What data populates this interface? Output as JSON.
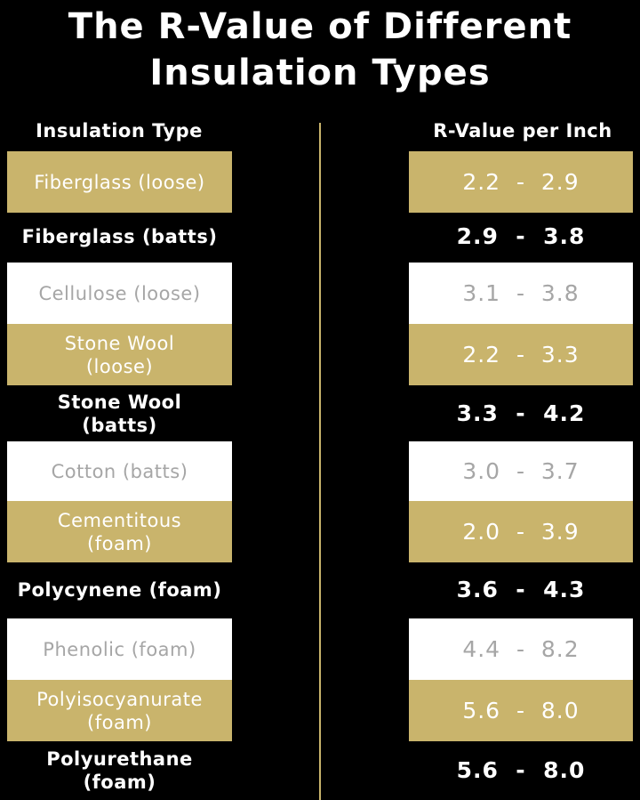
{
  "title_line1": "The R-Value of Different",
  "title_line2": "Insulation Types",
  "headers": {
    "type": "Insulation Type",
    "value": "R-Value per Inch"
  },
  "colors": {
    "background": "#000000",
    "gold": "#c9b46c",
    "white": "#ffffff",
    "muted_text": "#a6a6a6"
  },
  "rows": [
    {
      "style": "gold",
      "type_line1": "Fiberglass (loose)",
      "type_line2": "",
      "value": "2.2  -  2.9"
    },
    {
      "style": "black",
      "type_line1": "Fiberglass (batts)",
      "type_line2": "",
      "value": "2.9  -  3.8"
    },
    {
      "style": "white",
      "type_line1": "Cellulose (loose)",
      "type_line2": "",
      "value": "3.1  -  3.8"
    },
    {
      "style": "gold",
      "type_line1": "Stone Wool",
      "type_line2": "(loose)",
      "value": "2.2  -  3.3"
    },
    {
      "style": "black",
      "type_line1": "Stone Wool",
      "type_line2": "(batts)",
      "value": "3.3  -  4.2"
    },
    {
      "style": "white",
      "type_line1": "Cotton (batts)",
      "type_line2": "",
      "value": "3.0  -  3.7"
    },
    {
      "style": "gold",
      "type_line1": "Cementitous",
      "type_line2": "(foam)",
      "value": "2.0  -  3.9"
    },
    {
      "style": "black",
      "type_line1": "Polycynene (foam)",
      "type_line2": "",
      "value": "3.6  -  4.3"
    },
    {
      "style": "white",
      "type_line1": "Phenolic (foam)",
      "type_line2": "",
      "value": "4.4  -  8.2"
    },
    {
      "style": "gold",
      "type_line1": "Polyisocyanurate",
      "type_line2": "(foam)",
      "value": "5.6  -  8.0"
    },
    {
      "style": "black",
      "type_line1": "Polyurethane",
      "type_line2": "(foam)",
      "value": "5.6  -  8.0"
    }
  ]
}
